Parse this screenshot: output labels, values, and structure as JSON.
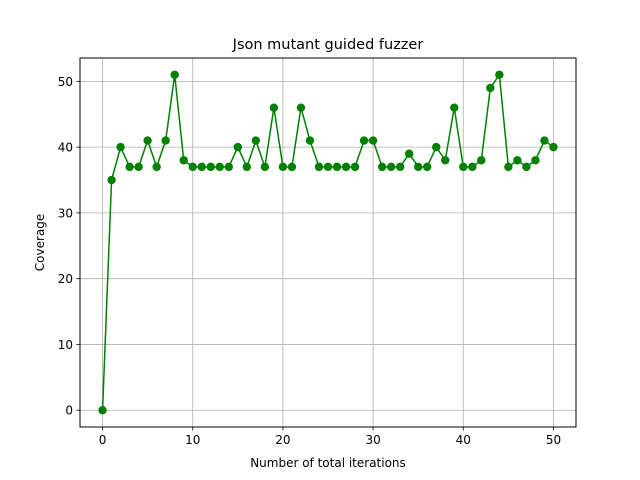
{
  "chart_data": {
    "type": "line",
    "title": "Json mutant guided fuzzer",
    "xlabel": "Number of total iterations",
    "ylabel": "Coverage",
    "xlim": [
      -2.5,
      52.5
    ],
    "ylim": [
      -2.55,
      53.55
    ],
    "xticks": [
      0,
      10,
      20,
      30,
      40,
      50
    ],
    "yticks": [
      0,
      10,
      20,
      30,
      40,
      50
    ],
    "grid": true,
    "series": [
      {
        "color": "#008000",
        "marker": "circle",
        "x": [
          0,
          1,
          2,
          3,
          4,
          5,
          6,
          7,
          8,
          9,
          10,
          11,
          12,
          13,
          14,
          15,
          16,
          17,
          18,
          19,
          20,
          21,
          22,
          23,
          24,
          25,
          26,
          27,
          28,
          29,
          30,
          31,
          32,
          33,
          34,
          35,
          36,
          37,
          38,
          39,
          40,
          41,
          42,
          43,
          44,
          45,
          46,
          47,
          48,
          49,
          50
        ],
        "y": [
          0,
          35,
          40,
          37,
          37,
          41,
          37,
          41,
          51,
          38,
          37,
          37,
          37,
          37,
          37,
          40,
          37,
          41,
          37,
          46,
          37,
          37,
          46,
          41,
          37,
          37,
          37,
          37,
          37,
          41,
          41,
          37,
          37,
          37,
          39,
          37,
          37,
          40,
          38,
          46,
          37,
          37,
          38,
          49,
          51,
          37,
          38,
          37,
          38,
          41,
          40
        ]
      }
    ]
  }
}
